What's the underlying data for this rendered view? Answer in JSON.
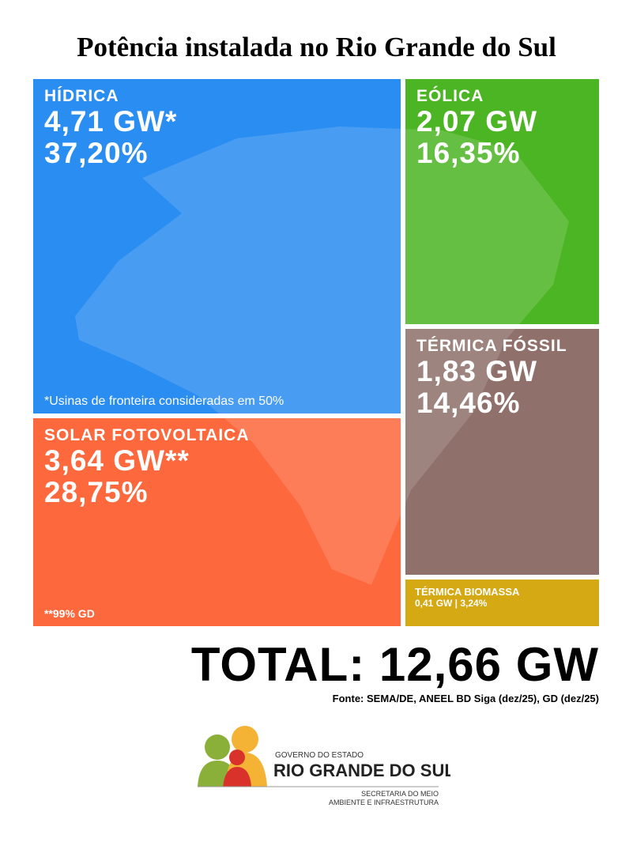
{
  "header": {
    "title": "Potência instalada no Rio Grande do Sul"
  },
  "tiles": [
    {
      "name": "HÍDRICA",
      "power": "4,71 GW*",
      "share": "37,20%",
      "note": "*Usinas de fronteira consideradas em 50%"
    },
    {
      "name": "EÓLICA",
      "power": "2,07 GW",
      "share": "16,35%"
    },
    {
      "name": "TÉRMICA FÓSSIL",
      "power": "1,83 GW",
      "share": "14,46%"
    },
    {
      "name": "SOLAR FOTOVOLTAICA",
      "power": "3,64 GW**",
      "share": "28,75%",
      "note": "**99% GD"
    },
    {
      "name": "TÉRMICA BIOMASSA",
      "detail": "0,41 GW | 3,24%"
    }
  ],
  "total": "TOTAL: 12,66 GW",
  "source": "Fonte: SEMA/DE, ANEEL BD Siga (dez/25), GD (dez/25)",
  "logo": {
    "line1": "GOVERNO DO ESTADO",
    "line2": "RIO GRANDE DO SUL",
    "line3": "SECRETARIA DO MEIO",
    "line4": "AMBIENTE E INFRAESTRUTURA"
  }
}
